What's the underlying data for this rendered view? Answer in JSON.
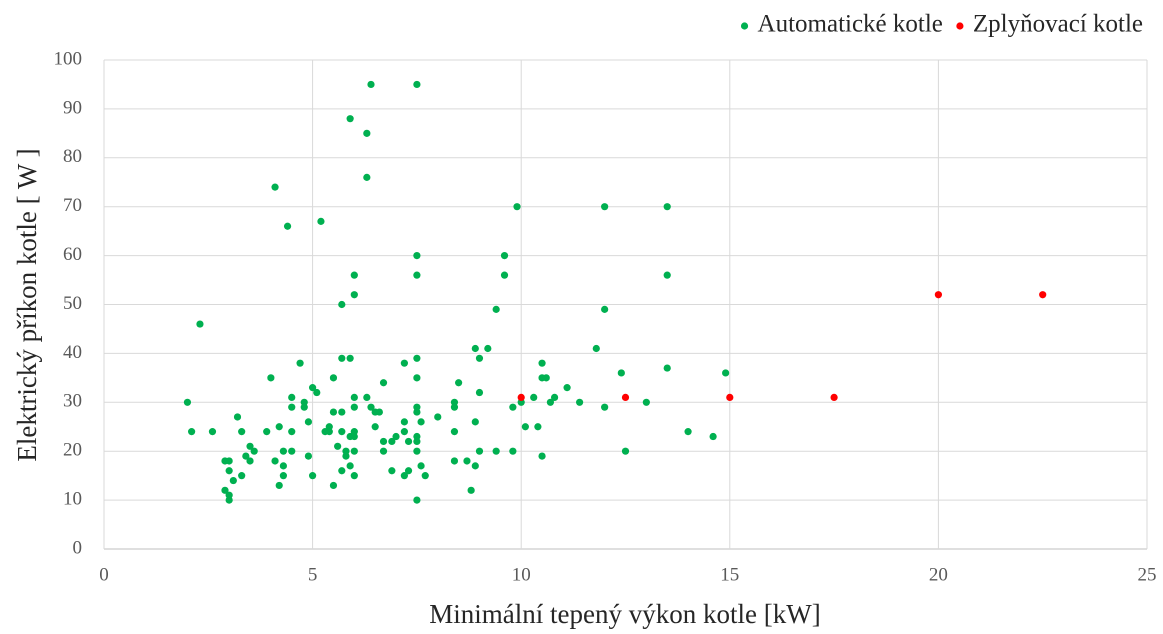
{
  "chart_data": {
    "type": "scatter",
    "xlabel": "Minimální tepený výkon kotle [kW]",
    "ylabel": "Elektrický příkon kotle [ W ]",
    "xlim": [
      0,
      25
    ],
    "xticks": [
      0,
      5,
      10,
      15,
      20,
      25
    ],
    "ylim": [
      0,
      100
    ],
    "yticks": [
      0,
      10,
      20,
      30,
      40,
      50,
      60,
      70,
      80,
      90,
      100
    ],
    "grid": true,
    "legend": "top-right",
    "series": [
      {
        "name": "Automatické kotle",
        "color": "#00b050",
        "x": [
          2.0,
          2.1,
          2.3,
          2.6,
          2.9,
          3.0,
          2.9,
          3.0,
          3.0,
          3.0,
          3.1,
          3.2,
          3.3,
          3.3,
          3.4,
          3.5,
          3.5,
          3.6,
          3.9,
          4.0,
          4.1,
          4.1,
          4.2,
          4.2,
          4.3,
          4.3,
          4.3,
          4.4,
          4.5,
          4.5,
          4.5,
          4.5,
          4.7,
          4.8,
          4.8,
          4.9,
          4.9,
          5.0,
          5.0,
          5.1,
          5.2,
          5.3,
          5.4,
          5.4,
          5.5,
          5.5,
          5.5,
          5.6,
          5.7,
          5.7,
          5.7,
          5.7,
          5.7,
          5.8,
          5.8,
          5.9,
          5.9,
          5.9,
          5.9,
          6.0,
          6.0,
          6.0,
          6.0,
          6.0,
          6.0,
          6.0,
          6.0,
          6.3,
          6.3,
          6.3,
          6.4,
          6.4,
          6.5,
          6.5,
          6.6,
          6.7,
          6.7,
          6.7,
          6.9,
          6.9,
          7.0,
          7.2,
          7.2,
          7.2,
          7.2,
          7.3,
          7.3,
          7.5,
          7.5,
          7.5,
          7.5,
          7.5,
          7.5,
          7.5,
          7.5,
          7.5,
          7.5,
          7.5,
          7.6,
          7.6,
          7.7,
          8.0,
          8.4,
          8.4,
          8.4,
          8.4,
          8.5,
          8.7,
          8.8,
          8.9,
          8.9,
          8.9,
          9.0,
          9.0,
          9.0,
          9.2,
          9.4,
          9.4,
          9.6,
          9.6,
          9.8,
          9.8,
          9.9,
          10.0,
          10.1,
          10.3,
          10.4,
          10.5,
          10.5,
          10.5,
          10.6,
          10.7,
          10.8,
          11.1,
          11.4,
          11.8,
          12.0,
          12.0,
          12.0,
          12.4,
          12.5,
          13.0,
          13.5,
          13.5,
          13.5,
          14.0,
          14.6,
          14.9
        ],
        "values": [
          30,
          24,
          46,
          24,
          18,
          18,
          12,
          11,
          10,
          16,
          14,
          27,
          15,
          24,
          19,
          18,
          21,
          20,
          24,
          35,
          74,
          18,
          25,
          13,
          20,
          17,
          15,
          66,
          31,
          29,
          24,
          20,
          38,
          30,
          29,
          26,
          19,
          33,
          15,
          32,
          67,
          24,
          25,
          24,
          35,
          28,
          13,
          21,
          24,
          28,
          50,
          39,
          16,
          20,
          19,
          88,
          39,
          23,
          17,
          52,
          56,
          31,
          29,
          24,
          23,
          20,
          15,
          85,
          76,
          31,
          95,
          29,
          28,
          25,
          28,
          34,
          22,
          20,
          16,
          22,
          23,
          38,
          26,
          15,
          24,
          22,
          16,
          95,
          60,
          56,
          39,
          35,
          29,
          28,
          23,
          22,
          20,
          10,
          26,
          17,
          15,
          27,
          30,
          29,
          24,
          18,
          34,
          18,
          12,
          17,
          41,
          26,
          39,
          32,
          20,
          41,
          49,
          20,
          60,
          56,
          29,
          20,
          70,
          30,
          25,
          31,
          25,
          35,
          38,
          19,
          35,
          30,
          31,
          33,
          30,
          41,
          70,
          49,
          29,
          36,
          20,
          30,
          70,
          56,
          37,
          24,
          23,
          36
        ]
      },
      {
        "name": "Zplyňovací kotle",
        "color": "#ff0000",
        "x": [
          10,
          12.5,
          15,
          17.5,
          20,
          22.5
        ],
        "values": [
          31,
          31,
          31,
          31,
          52,
          52
        ]
      }
    ]
  }
}
